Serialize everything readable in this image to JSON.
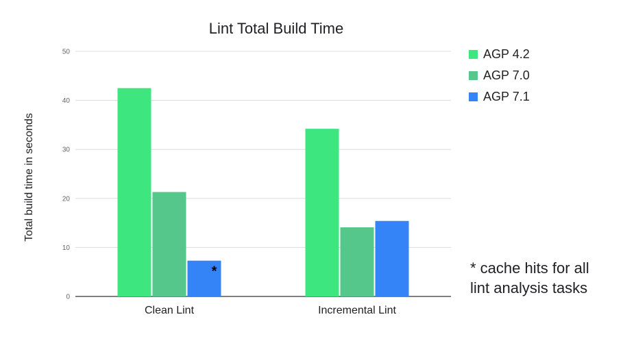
{
  "chart_data": {
    "type": "bar",
    "title": "Lint Total Build Time",
    "ylabel": "Total build time in seconds",
    "xlabel": "",
    "ylim": [
      0,
      50
    ],
    "yticks": [
      0,
      10,
      20,
      30,
      40,
      50
    ],
    "categories": [
      "Clean Lint",
      "Incremental Lint"
    ],
    "series": [
      {
        "name": "AGP 4.2",
        "color": "#3ee67f",
        "values": [
          42.5,
          34.2
        ]
      },
      {
        "name": "AGP 7.0",
        "color": "#55c78a",
        "values": [
          21.3,
          14.1
        ]
      },
      {
        "name": "AGP 7.1",
        "color": "#3484f7",
        "values": [
          7.3,
          15.4
        ]
      }
    ],
    "grid": true,
    "legend_position": "top-right",
    "bar_annotation": {
      "series": 2,
      "category": 0,
      "text": "*"
    },
    "footnote_lines": [
      "* cache hits for all",
      "lint analysis tasks"
    ]
  }
}
